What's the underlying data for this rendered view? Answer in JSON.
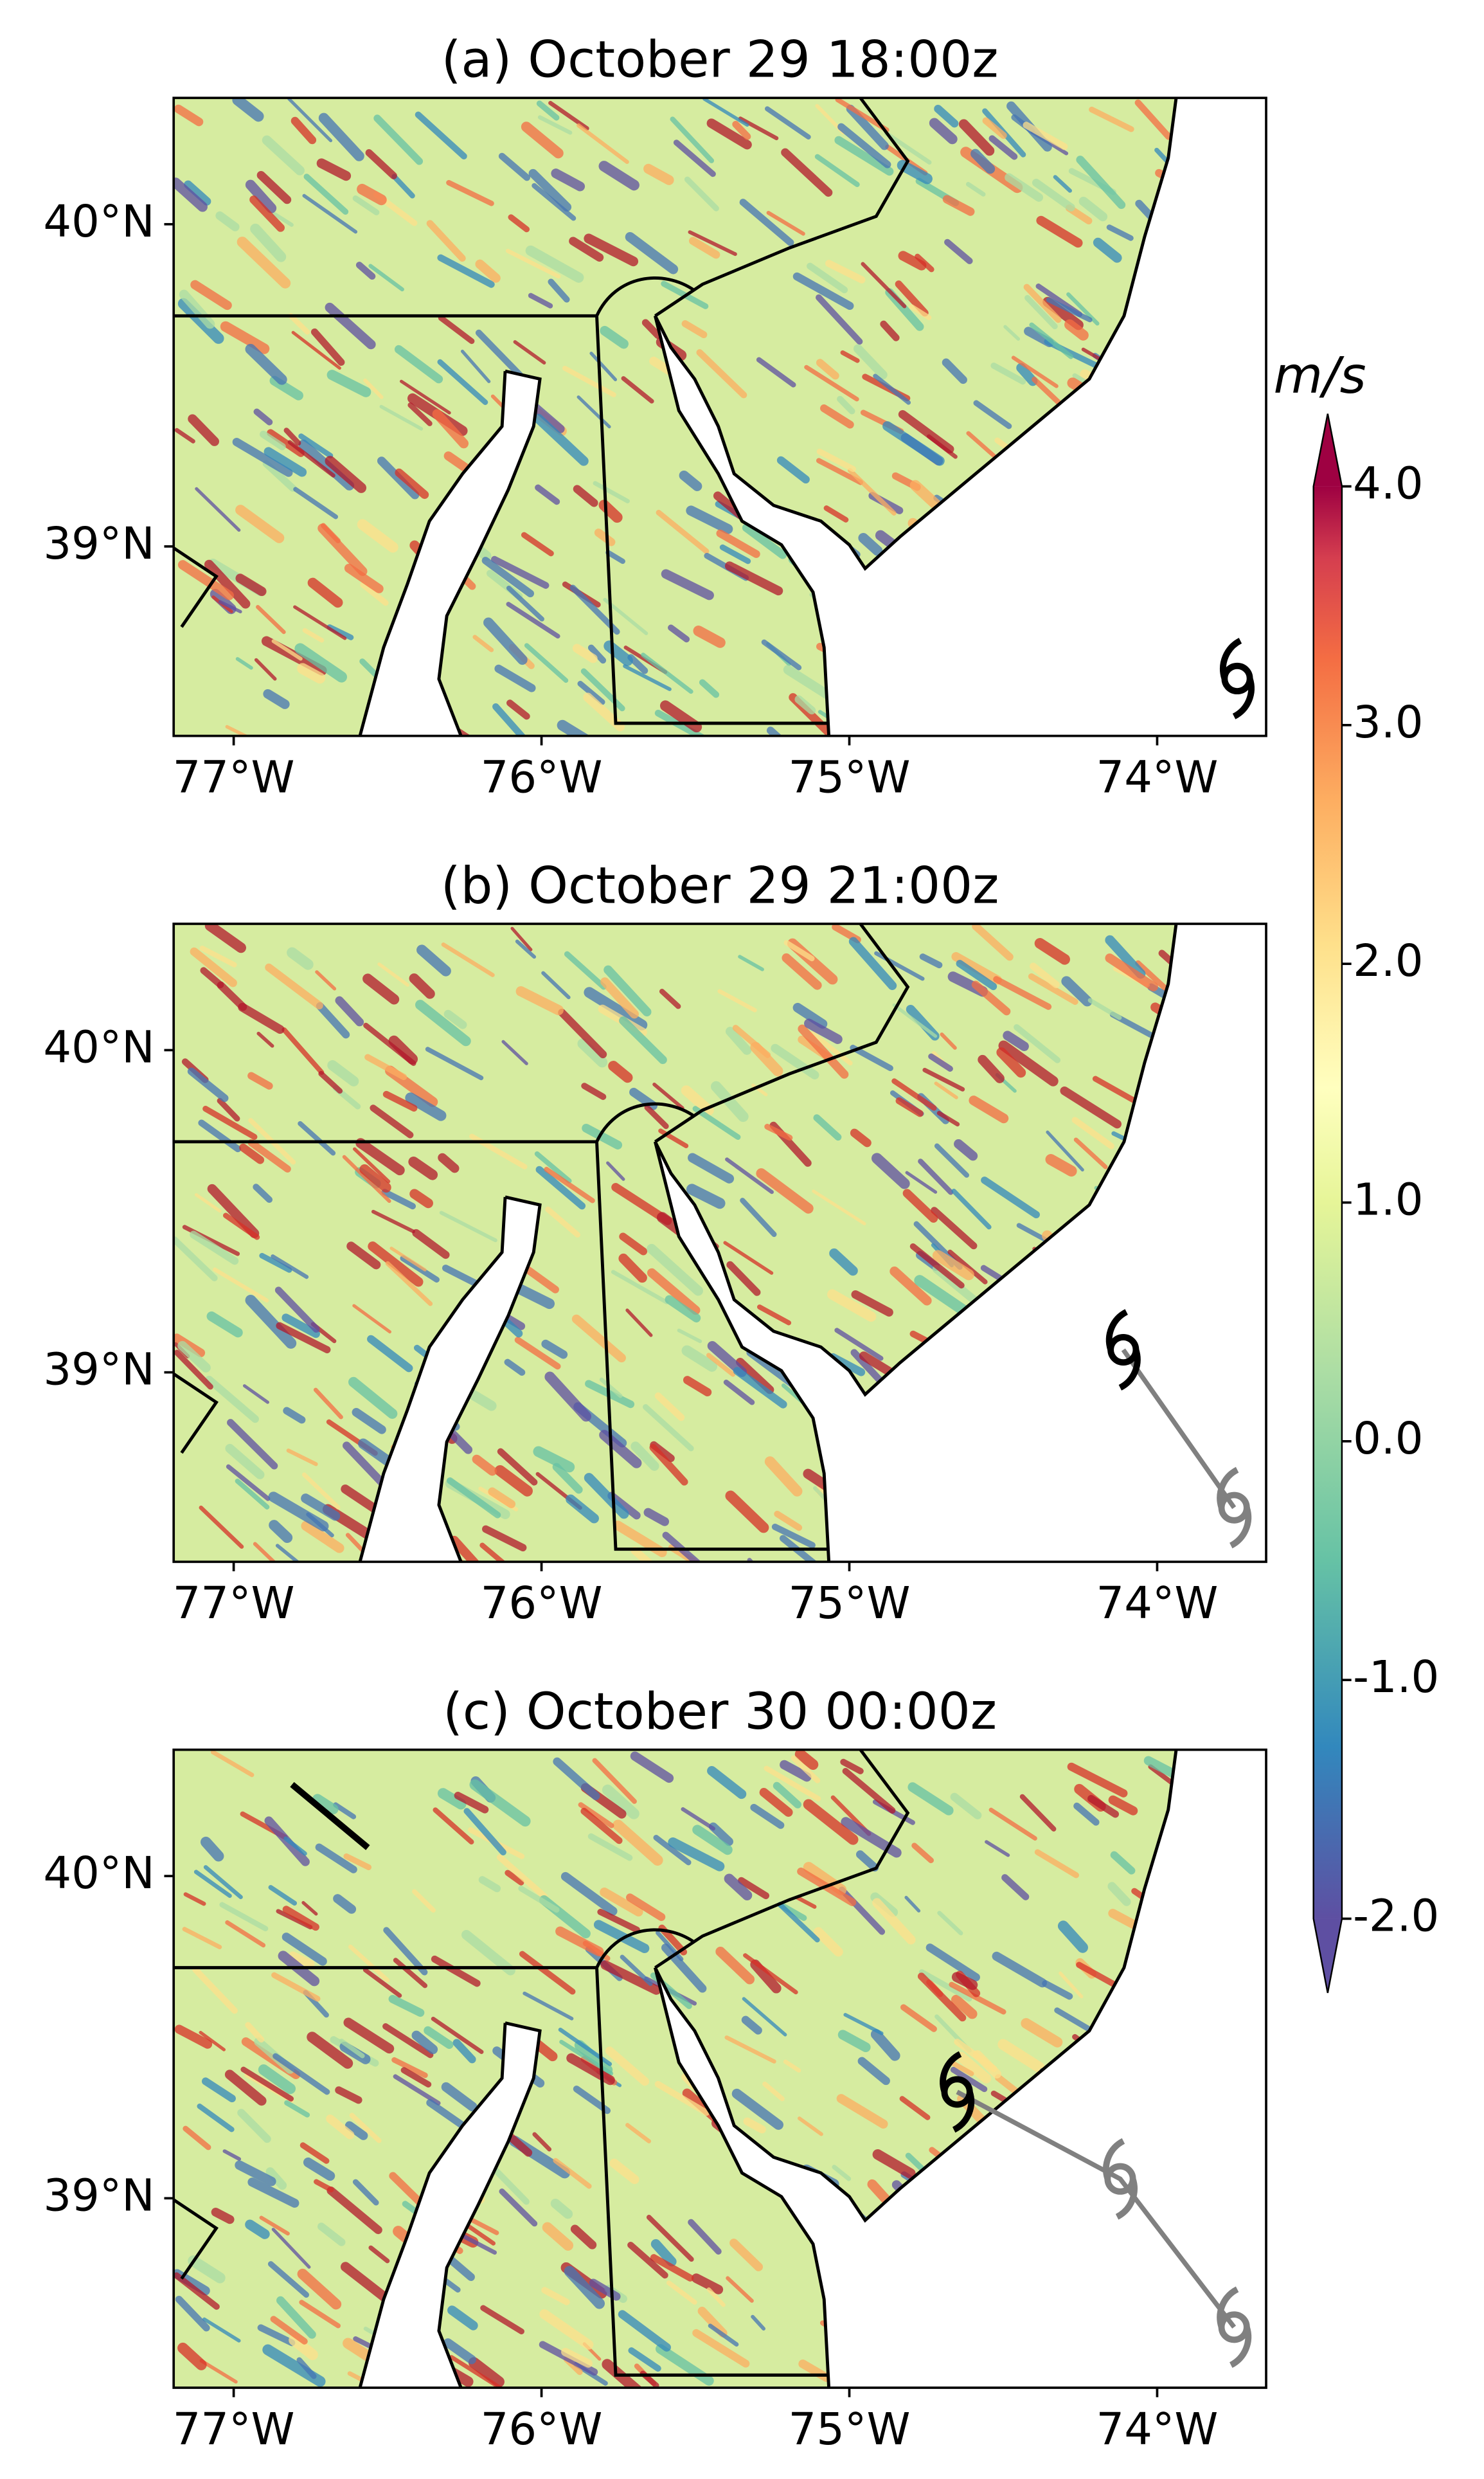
{
  "panels": [
    {
      "title": "(a) October 29 18:00z",
      "track": [
        {
          "lon": -73.74,
          "lat": 38.59,
          "color": "#000000"
        }
      ]
    },
    {
      "title": "(b) October 29 21:00z",
      "track": [
        {
          "lon": -73.75,
          "lat": 38.58,
          "color": "#808080"
        },
        {
          "lon": -74.11,
          "lat": 39.07,
          "color": "#000000"
        }
      ]
    },
    {
      "title": "(c) October 30 00:00z",
      "track": [
        {
          "lon": -73.75,
          "lat": 38.6,
          "color": "#808080"
        },
        {
          "lon": -74.12,
          "lat": 39.06,
          "color": "#808080"
        },
        {
          "lon": -74.65,
          "lat": 39.33,
          "color": "#000000"
        }
      ]
    }
  ],
  "map": {
    "lonlim": [
      -77.195,
      -73.646
    ],
    "latlim": [
      38.412,
      40.392
    ],
    "lon_ticks": [
      {
        "value": -77,
        "label": "77°W"
      },
      {
        "value": -76,
        "label": "76°W"
      },
      {
        "value": -75,
        "label": "75°W"
      },
      {
        "value": -74,
        "label": "74°W"
      }
    ],
    "lat_ticks": [
      {
        "value": 39,
        "label": "39°N"
      },
      {
        "value": 40,
        "label": "40°N"
      }
    ],
    "track_line_color": "#808080"
  },
  "colorbar": {
    "unit": "m/s",
    "lim": [
      -2,
      4
    ],
    "ticks": [
      {
        "value": 4,
        "label": "4.0"
      },
      {
        "value": 3,
        "label": "3.0"
      },
      {
        "value": 2,
        "label": "2.0"
      },
      {
        "value": 1,
        "label": "1.0"
      },
      {
        "value": 0,
        "label": "0.0"
      },
      {
        "value": -1,
        "label": "-1.0"
      },
      {
        "value": -2,
        "label": "-2.0"
      }
    ]
  }
}
